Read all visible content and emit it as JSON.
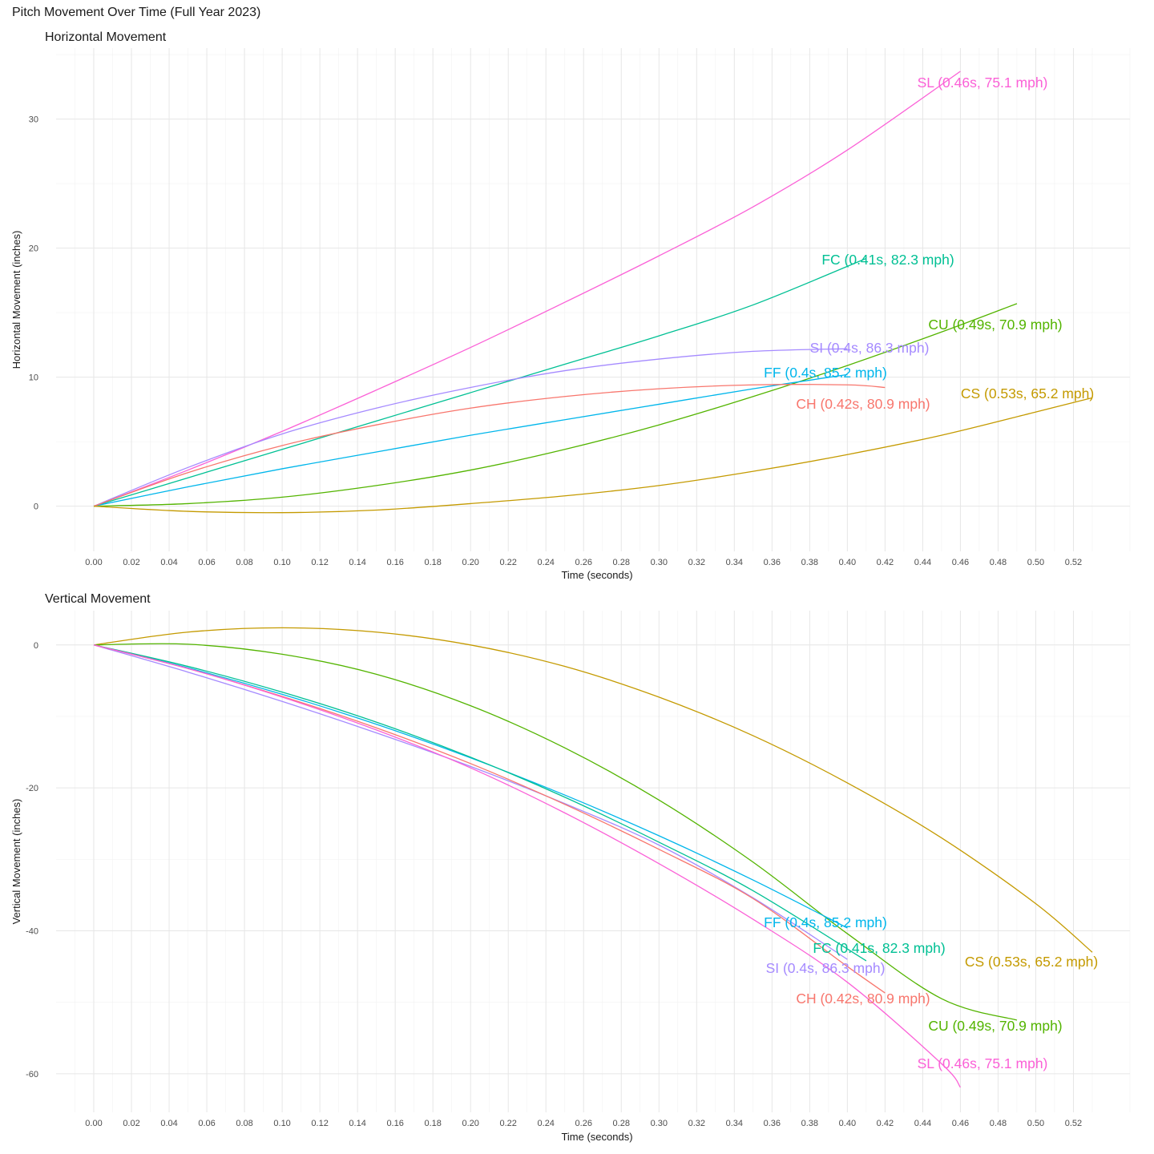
{
  "title": "Pitch Movement Over Time (Full Year 2023)",
  "colors": {
    "CH": "#F8766D",
    "CS": "#C49A00",
    "CU": "#53B400",
    "FC": "#00C094",
    "FF": "#00B6EB",
    "SI": "#A58AFF",
    "SL": "#FB61D7"
  },
  "chart_data": [
    {
      "type": "line",
      "title": "Horizontal Movement",
      "xlabel": "Time (seconds)",
      "ylabel": "Horizontal Movement (inches)",
      "xlim": [
        -0.02,
        0.55
      ],
      "ylim": [
        -3.5,
        35.5
      ],
      "x_ticks": [
        "0.00",
        "0.02",
        "0.04",
        "0.06",
        "0.08",
        "0.10",
        "0.12",
        "0.14",
        "0.16",
        "0.18",
        "0.20",
        "0.22",
        "0.24",
        "0.26",
        "0.28",
        "0.30",
        "0.32",
        "0.34",
        "0.36",
        "0.38",
        "0.40",
        "0.42",
        "0.44",
        "0.46",
        "0.48",
        "0.50",
        "0.52"
      ],
      "y_ticks": [
        "0",
        "10",
        "20",
        "30"
      ],
      "grid": true,
      "series": [
        {
          "name": "SL",
          "label": "SL (0.46s, 75.1 mph)",
          "x": [
            0,
            0.05,
            0.1,
            0.15,
            0.2,
            0.25,
            0.3,
            0.35,
            0.4,
            0.46
          ],
          "y": [
            0,
            2.8,
            5.8,
            9.0,
            12.3,
            15.8,
            19.4,
            23.2,
            27.6,
            33.7
          ]
        },
        {
          "name": "FC",
          "label": "FC (0.41s, 82.3 mph)",
          "x": [
            0,
            0.05,
            0.1,
            0.15,
            0.2,
            0.25,
            0.3,
            0.35,
            0.41
          ],
          "y": [
            0,
            2.2,
            4.4,
            6.6,
            8.8,
            11.0,
            13.2,
            15.6,
            19.2
          ]
        },
        {
          "name": "CU",
          "label": "CU (0.49s, 70.9 mph)",
          "x": [
            0,
            0.05,
            0.1,
            0.15,
            0.2,
            0.25,
            0.3,
            0.35,
            0.4,
            0.45,
            0.49
          ],
          "y": [
            0,
            0.2,
            0.7,
            1.6,
            2.8,
            4.4,
            6.3,
            8.5,
            10.9,
            13.5,
            15.7
          ]
        },
        {
          "name": "SI",
          "label": "SI (0.4s, 86.3 mph)",
          "x": [
            0,
            0.05,
            0.1,
            0.15,
            0.2,
            0.25,
            0.3,
            0.35,
            0.4
          ],
          "y": [
            0,
            3.0,
            5.6,
            7.6,
            9.2,
            10.5,
            11.4,
            12.0,
            12.2
          ]
        },
        {
          "name": "FF",
          "label": "FF (0.4s, 85.2 mph)",
          "x": [
            0,
            0.05,
            0.1,
            0.15,
            0.2,
            0.25,
            0.3,
            0.35,
            0.4
          ],
          "y": [
            0,
            1.5,
            2.9,
            4.2,
            5.5,
            6.7,
            7.9,
            9.1,
            10.2
          ]
        },
        {
          "name": "CH",
          "label": "CH (0.42s, 80.9 mph)",
          "x": [
            0,
            0.05,
            0.1,
            0.15,
            0.2,
            0.25,
            0.3,
            0.35,
            0.4,
            0.42
          ],
          "y": [
            0,
            2.6,
            4.7,
            6.3,
            7.6,
            8.5,
            9.1,
            9.4,
            9.4,
            9.2
          ]
        },
        {
          "name": "CS",
          "label": "CS (0.53s, 65.2 mph)",
          "x": [
            0,
            0.05,
            0.1,
            0.15,
            0.2,
            0.25,
            0.3,
            0.35,
            0.4,
            0.45,
            0.5,
            0.53
          ],
          "y": [
            0,
            -0.4,
            -0.5,
            -0.3,
            0.2,
            0.8,
            1.6,
            2.7,
            4.0,
            5.5,
            7.3,
            8.4
          ]
        }
      ]
    },
    {
      "type": "line",
      "title": "Vertical Movement",
      "xlabel": "Time (seconds)",
      "ylabel": "Vertical Movement (inches)",
      "xlim": [
        -0.02,
        0.55
      ],
      "ylim": [
        -65.4,
        4.8
      ],
      "x_ticks": [
        "0.00",
        "0.02",
        "0.04",
        "0.06",
        "0.08",
        "0.10",
        "0.12",
        "0.14",
        "0.16",
        "0.18",
        "0.20",
        "0.22",
        "0.24",
        "0.26",
        "0.28",
        "0.30",
        "0.32",
        "0.34",
        "0.36",
        "0.38",
        "0.40",
        "0.42",
        "0.44",
        "0.46",
        "0.48",
        "0.50",
        "0.52"
      ],
      "y_ticks": [
        "0",
        "-20",
        "-40",
        "-60"
      ],
      "grid": true,
      "series": [
        {
          "name": "CS",
          "label": "CS (0.53s, 65.2 mph)",
          "x": [
            0,
            0.05,
            0.1,
            0.15,
            0.2,
            0.25,
            0.3,
            0.35,
            0.4,
            0.45,
            0.5,
            0.53
          ],
          "y": [
            0,
            1.8,
            2.4,
            1.8,
            0,
            -3.0,
            -7.3,
            -12.7,
            -19.3,
            -27.0,
            -36.2,
            -43.0
          ]
        },
        {
          "name": "CU",
          "label": "CU (0.49s, 70.9 mph)",
          "x": [
            0,
            0.05,
            0.1,
            0.15,
            0.2,
            0.25,
            0.3,
            0.35,
            0.4,
            0.45,
            0.49
          ],
          "y": [
            0,
            0.1,
            -1.3,
            -4.1,
            -8.5,
            -14.4,
            -21.7,
            -30.4,
            -40.4,
            -49.5,
            -52.5
          ]
        },
        {
          "name": "FF",
          "label": "FF (0.4s, 85.2 mph)",
          "x": [
            0,
            0.05,
            0.1,
            0.15,
            0.2,
            0.25,
            0.3,
            0.35,
            0.4
          ],
          "y": [
            0,
            -3.2,
            -6.9,
            -11.1,
            -15.8,
            -21.0,
            -26.7,
            -32.9,
            -39.6
          ]
        },
        {
          "name": "FC",
          "label": "FC (0.41s, 82.3 mph)",
          "x": [
            0,
            0.05,
            0.1,
            0.15,
            0.2,
            0.25,
            0.3,
            0.35,
            0.41
          ],
          "y": [
            0,
            -3.0,
            -6.6,
            -10.8,
            -15.7,
            -21.3,
            -27.6,
            -34.4,
            -44.2
          ]
        },
        {
          "name": "SI",
          "label": "SI (0.4s, 86.3 mph)",
          "x": [
            0,
            0.05,
            0.1,
            0.15,
            0.2,
            0.25,
            0.3,
            0.35,
            0.4
          ],
          "y": [
            0,
            -3.8,
            -7.9,
            -12.3,
            -17.0,
            -22.2,
            -28.0,
            -35.4,
            -44.0
          ]
        },
        {
          "name": "CH",
          "label": "CH (0.42s, 80.9 mph)",
          "x": [
            0,
            0.05,
            0.1,
            0.15,
            0.2,
            0.25,
            0.3,
            0.35,
            0.4,
            0.42
          ],
          "y": [
            0,
            -3.3,
            -7.2,
            -11.6,
            -16.6,
            -22.3,
            -28.6,
            -35.5,
            -45.0,
            -48.7
          ]
        },
        {
          "name": "SL",
          "label": "SL (0.46s, 75.1 mph)",
          "x": [
            0,
            0.05,
            0.1,
            0.15,
            0.2,
            0.25,
            0.3,
            0.35,
            0.4,
            0.45,
            0.46
          ],
          "y": [
            0,
            -3.3,
            -7.3,
            -11.9,
            -17.2,
            -23.5,
            -30.6,
            -38.4,
            -47.2,
            -58.6,
            -61.9
          ]
        }
      ]
    }
  ]
}
